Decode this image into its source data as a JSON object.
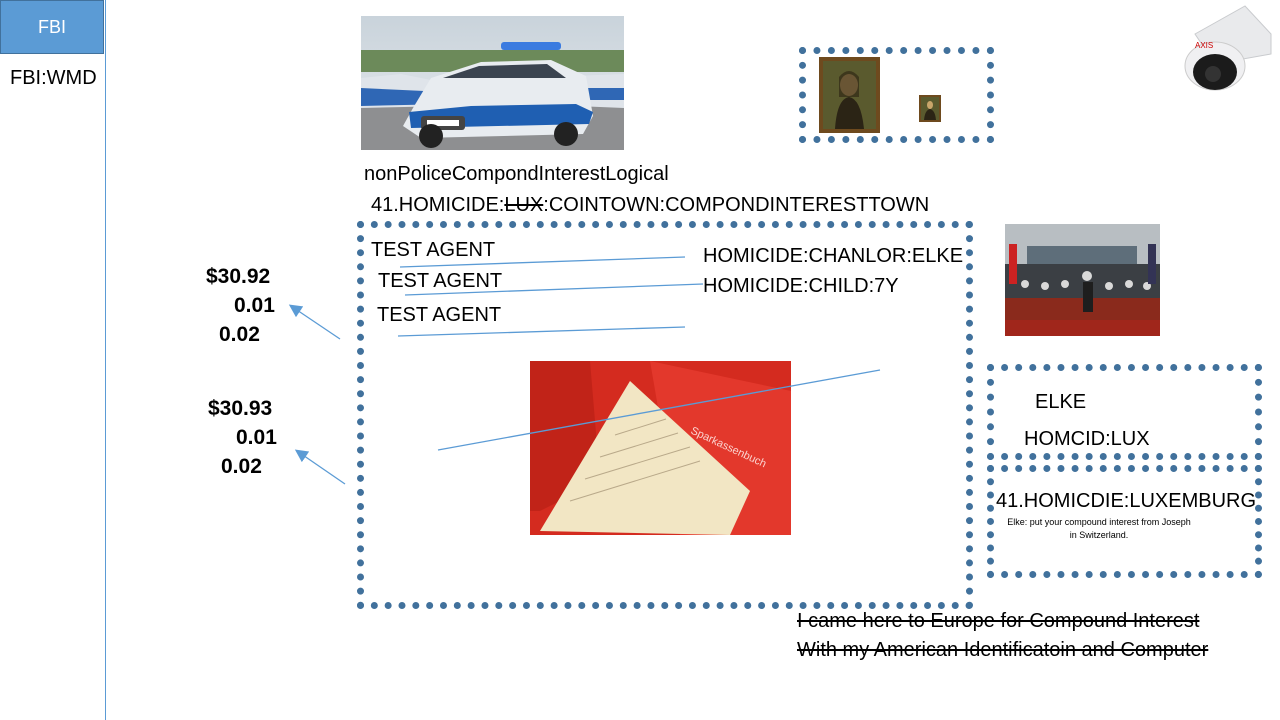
{
  "sidebar": {
    "button_label": "FBI",
    "subtitle": "FBI:WMD"
  },
  "images": {
    "police_car": "police-car-photo",
    "mona_lisa_large": "mona-lisa-painting",
    "mona_lisa_small": "mona-lisa-thumbnail",
    "camera": "security-camera-icon",
    "conference": "press-conference-photo",
    "savings_book": "sparkassenbuch-photo"
  },
  "headline": {
    "line1": "nonPoliceCompondInterestLogical",
    "line2_prefix": "41.HOMICIDE:",
    "line2_strike": "LUX",
    "line2_suffix": ":COINTOWN:COMPONDINTERESTTOWN"
  },
  "main_box": {
    "agents": [
      "TEST AGENT",
      "TEST AGENT",
      "TEST AGENT"
    ],
    "right_labels": [
      "HOMICIDE:CHANLOR:ELKE",
      "HOMICIDE:CHILD:7Y"
    ]
  },
  "left_values": {
    "group1": [
      "$30.92",
      "0.01",
      "0.02"
    ],
    "group2": [
      "$30.93",
      "0.01",
      "0.02"
    ]
  },
  "side_box_top": {
    "name": "ELKE",
    "label": "HOMCID:LUX"
  },
  "side_box_bottom": {
    "title": "41.HOMICDIE:LUXEMBURG",
    "note_line1": "Elke: put your compound interest from Joseph",
    "note_line2": "in Switzerland."
  },
  "footer": {
    "line1": "I came here to Europe for Compound Interest",
    "line2": "With my American Identificatoin and Computer"
  },
  "colors": {
    "accent": "#5b9bd5",
    "border": "#41719c"
  }
}
